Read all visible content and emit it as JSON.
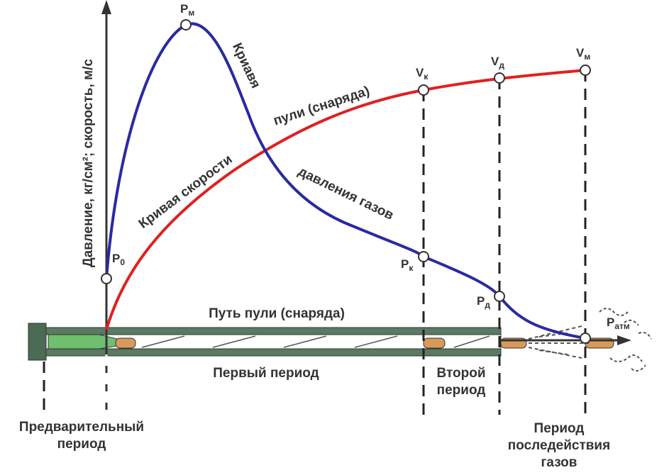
{
  "axis_label": "Давление, кг/см²; скорость, м/с",
  "points": [
    {
      "letter": "P",
      "sub": "м"
    },
    {
      "letter": "P",
      "sub": "0"
    },
    {
      "letter": "P",
      "sub": "к"
    },
    {
      "letter": "P",
      "sub": "д"
    },
    {
      "letter": "P",
      "sub": "атм"
    },
    {
      "letter": "V",
      "sub": "к"
    },
    {
      "letter": "V",
      "sub": "д"
    },
    {
      "letter": "V",
      "sub": "м"
    }
  ],
  "curve_labels": [
    "Кривая скорости",
    "пули (снаряда)",
    "Криавя",
    "давления газов"
  ],
  "path_label": "Путь пули (снаряда)",
  "periods": [
    [
      "Первый период"
    ],
    [
      "Второй",
      "период"
    ],
    [
      "Предварительный",
      "период"
    ],
    [
      "Период",
      "последействия",
      "газов"
    ]
  ]
}
